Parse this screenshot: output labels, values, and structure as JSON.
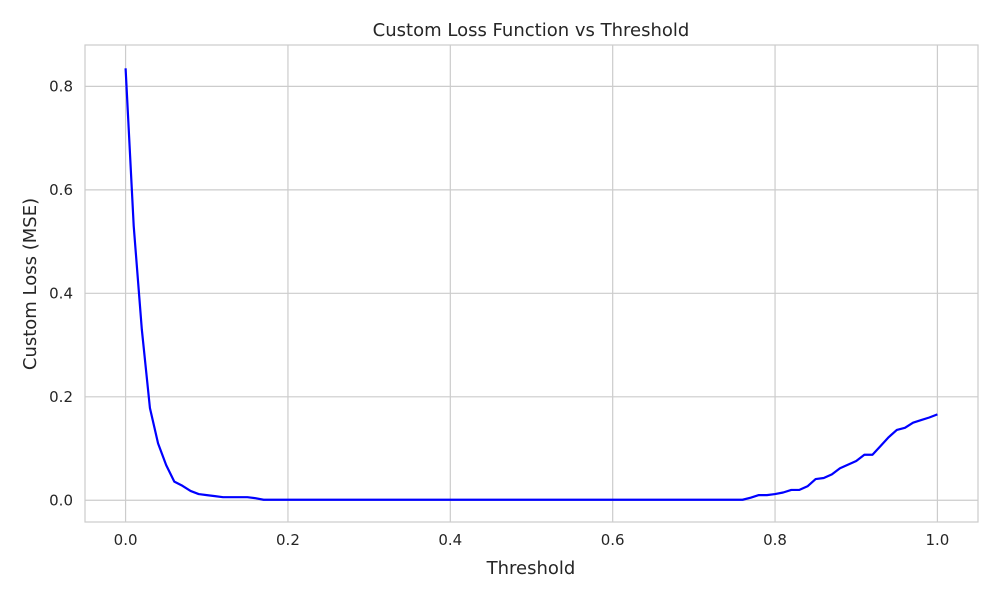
{
  "chart_data": {
    "type": "line",
    "title": "Custom Loss Function vs Threshold",
    "xlabel": "Threshold",
    "ylabel": "Custom Loss (MSE)",
    "xlim": [
      -0.05,
      1.05
    ],
    "ylim": [
      -0.042,
      0.88
    ],
    "xticks": [
      0.0,
      0.2,
      0.4,
      0.6,
      0.8,
      1.0
    ],
    "xtick_labels": [
      "0.0",
      "0.2",
      "0.4",
      "0.6",
      "0.8",
      "1.0"
    ],
    "yticks": [
      0.0,
      0.2,
      0.4,
      0.6,
      0.8
    ],
    "ytick_labels": [
      "0.0",
      "0.2",
      "0.4",
      "0.6",
      "0.8"
    ],
    "grid": true,
    "series": [
      {
        "color": "#0000ff",
        "x": [
          0.0,
          0.01,
          0.02,
          0.03,
          0.04,
          0.05,
          0.06,
          0.07,
          0.08,
          0.09,
          0.1,
          0.11,
          0.12,
          0.13,
          0.14,
          0.15,
          0.16,
          0.17,
          0.18,
          0.19,
          0.2,
          0.3,
          0.4,
          0.5,
          0.6,
          0.7,
          0.75,
          0.76,
          0.77,
          0.78,
          0.79,
          0.8,
          0.81,
          0.82,
          0.83,
          0.84,
          0.85,
          0.86,
          0.87,
          0.88,
          0.89,
          0.9,
          0.91,
          0.92,
          0.93,
          0.94,
          0.95,
          0.96,
          0.97,
          0.98,
          0.99,
          1.0
        ],
        "y": [
          0.835,
          0.53,
          0.33,
          0.178,
          0.11,
          0.068,
          0.036,
          0.028,
          0.018,
          0.012,
          0.01,
          0.008,
          0.006,
          0.006,
          0.006,
          0.006,
          0.004,
          0.001,
          0.001,
          0.001,
          0.001,
          0.001,
          0.001,
          0.001,
          0.001,
          0.001,
          0.001,
          0.001,
          0.005,
          0.01,
          0.01,
          0.012,
          0.015,
          0.02,
          0.02,
          0.027,
          0.041,
          0.043,
          0.05,
          0.062,
          0.069,
          0.076,
          0.088,
          0.088,
          0.105,
          0.122,
          0.136,
          0.14,
          0.15,
          0.155,
          0.16,
          0.166
        ]
      }
    ]
  }
}
